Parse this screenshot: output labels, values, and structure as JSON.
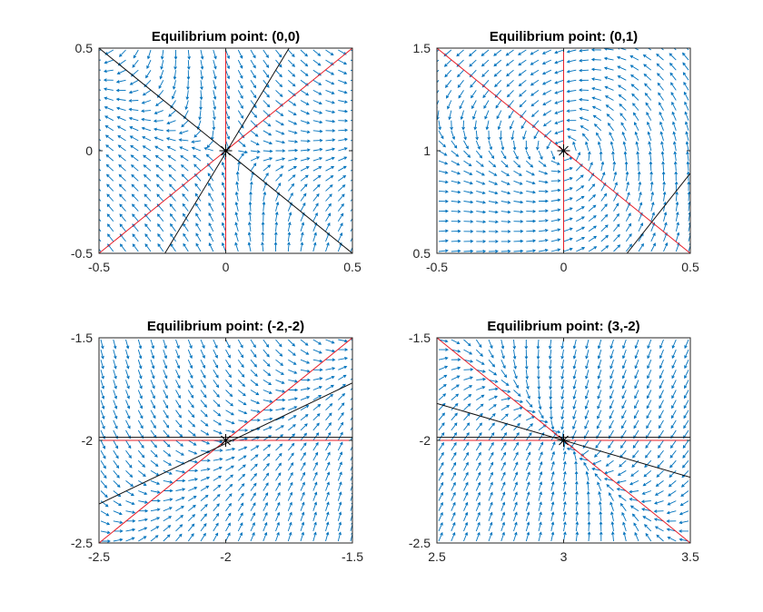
{
  "figure": {
    "background": "#ffffff"
  },
  "colors": {
    "quiver": "#0072BD",
    "red_line": "#e8202a",
    "black_line": "#111111",
    "axes": "#262626"
  },
  "chart_data": [
    {
      "type": "quiver",
      "title": "Equilibrium point: (0,0)",
      "equilibrium": [
        0,
        0
      ],
      "xlim": [
        -0.5,
        0.5
      ],
      "ylim": [
        -0.5,
        0.5
      ],
      "xticks": [
        -0.5,
        0,
        0.5
      ],
      "xtick_labels": [
        "-0.5",
        "0",
        "0.5"
      ],
      "yticks": [
        -0.5,
        0,
        0.5
      ],
      "ytick_labels": [
        "-0.5",
        "0",
        "0.5"
      ],
      "field": "saddle",
      "red_lines": [
        {
          "x": [
            0,
            0
          ],
          "y": [
            -0.5,
            0.5
          ]
        },
        {
          "x": [
            -0.5,
            0.5
          ],
          "y": [
            -0.5,
            0.5
          ]
        }
      ],
      "black_lines": [
        {
          "x": [
            -0.5,
            0.5
          ],
          "y": [
            0.5,
            -0.5
          ]
        },
        {
          "x": [
            -0.24,
            0.25
          ],
          "y": [
            -0.5,
            0.5
          ]
        }
      ]
    },
    {
      "type": "quiver",
      "title": "Equilibrium point: (0,1)",
      "equilibrium": [
        0,
        1
      ],
      "xlim": [
        -0.5,
        0.5
      ],
      "ylim": [
        0.5,
        1.5
      ],
      "xticks": [
        -0.5,
        0,
        0.5
      ],
      "xtick_labels": [
        "-0.5",
        "0",
        "0.5"
      ],
      "yticks": [
        0.5,
        1,
        1.5
      ],
      "ytick_labels": [
        "0.5",
        "1",
        "1.5"
      ],
      "field": "spiral",
      "red_lines": [
        {
          "x": [
            0,
            0
          ],
          "y": [
            0.5,
            1.5
          ]
        },
        {
          "x": [
            -0.5,
            0.5
          ],
          "y": [
            1.5,
            0.5
          ]
        }
      ],
      "black_lines": [
        {
          "x": [
            0.25,
            0.5
          ],
          "y": [
            0.5,
            0.89
          ]
        }
      ]
    },
    {
      "type": "quiver",
      "title": "Equilibrium point: (-2,-2)",
      "equilibrium": [
        -2,
        -2
      ],
      "xlim": [
        -2.5,
        -1.5
      ],
      "ylim": [
        -2.5,
        -1.5
      ],
      "xticks": [
        -2.5,
        -2,
        -1.5
      ],
      "xtick_labels": [
        "-2.5",
        "-2",
        "-1.5"
      ],
      "yticks": [
        -2.5,
        -2,
        -1.5
      ],
      "ytick_labels": [
        "-2.5",
        "-2",
        "-1.5"
      ],
      "field": "node-horizontal",
      "red_lines": [
        {
          "x": [
            -2.5,
            -1.5
          ],
          "y": [
            -2,
            -2
          ]
        },
        {
          "x": [
            -2.5,
            -1.5
          ],
          "y": [
            -2.5,
            -1.5
          ]
        }
      ],
      "black_lines": [
        {
          "x": [
            -2.5,
            -1.5
          ],
          "y": [
            -1.985,
            -1.985
          ]
        },
        {
          "x": [
            -2.5,
            -1.5
          ],
          "y": [
            -2.31,
            -1.72
          ]
        }
      ]
    },
    {
      "type": "quiver",
      "title": "Equilibrium point: (3,-2)",
      "equilibrium": [
        3,
        -2
      ],
      "xlim": [
        2.5,
        3.5
      ],
      "ylim": [
        -2.5,
        -1.5
      ],
      "xticks": [
        2.5,
        3,
        3.5
      ],
      "xtick_labels": [
        "2.5",
        "3",
        "3.5"
      ],
      "yticks": [
        -2.5,
        -2,
        -1.5
      ],
      "ytick_labels": [
        "-2.5",
        "-2",
        "-1.5"
      ],
      "field": "node-curved",
      "red_lines": [
        {
          "x": [
            2.5,
            3.5
          ],
          "y": [
            -2,
            -2
          ]
        },
        {
          "x": [
            2.5,
            3.5
          ],
          "y": [
            -1.5,
            -2.5
          ]
        }
      ],
      "black_lines": [
        {
          "x": [
            2.5,
            3.5
          ],
          "y": [
            -1.985,
            -1.985
          ]
        },
        {
          "x": [
            2.5,
            3.5
          ],
          "y": [
            -1.82,
            -2.18
          ]
        }
      ]
    }
  ]
}
